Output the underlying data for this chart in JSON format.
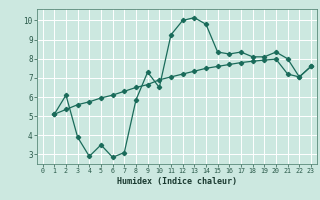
{
  "xlabel": "Humidex (Indice chaleur)",
  "ylabel": "",
  "bg_color": "#cce8e0",
  "grid_color": "#ffffff",
  "line_color": "#1a6b5a",
  "xlim": [
    -0.5,
    23.5
  ],
  "ylim": [
    2.5,
    10.6
  ],
  "xticks": [
    0,
    1,
    2,
    3,
    4,
    5,
    6,
    7,
    8,
    9,
    10,
    11,
    12,
    13,
    14,
    15,
    16,
    17,
    18,
    19,
    20,
    21,
    22,
    23
  ],
  "yticks": [
    3,
    4,
    5,
    6,
    7,
    8,
    9,
    10
  ],
  "line1_x": [
    1,
    2,
    3,
    4,
    5,
    6,
    7,
    8,
    9,
    10,
    11,
    12,
    13,
    14,
    15,
    16,
    17,
    18,
    19,
    20,
    21,
    22,
    23
  ],
  "line1_y": [
    5.1,
    6.1,
    3.9,
    2.9,
    3.5,
    2.85,
    3.1,
    5.85,
    7.3,
    6.5,
    9.25,
    10.0,
    10.15,
    9.8,
    8.35,
    8.25,
    8.35,
    8.1,
    8.1,
    8.35,
    8.0,
    7.05,
    7.6
  ],
  "line2_x": [
    1,
    2,
    3,
    4,
    5,
    6,
    7,
    8,
    9,
    10,
    11,
    12,
    13,
    14,
    15,
    16,
    17,
    18,
    19,
    20,
    21,
    22,
    23
  ],
  "line2_y": [
    5.1,
    5.35,
    5.6,
    5.75,
    5.95,
    6.1,
    6.3,
    6.5,
    6.65,
    6.9,
    7.05,
    7.2,
    7.35,
    7.5,
    7.6,
    7.7,
    7.8,
    7.87,
    7.93,
    7.98,
    7.2,
    7.05,
    7.6
  ]
}
